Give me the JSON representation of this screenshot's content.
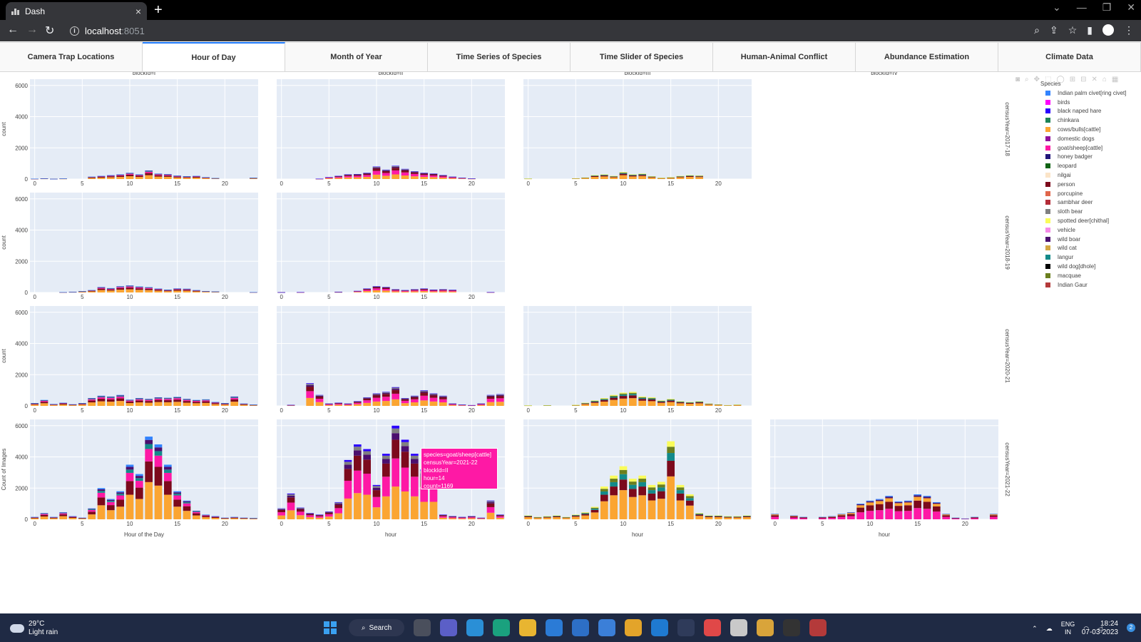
{
  "browser": {
    "tab_title": "Dash",
    "tab_close": "×",
    "new_tab": "+",
    "url_host": "localhost",
    "url_port": ":8051"
  },
  "page_tabs": [
    "Camera Trap Locations",
    "Hour of Day",
    "Month of Year",
    "Time Series of Species",
    "Time Slider of Species",
    "Human-Animal Conflict",
    "Abundance Estimation",
    "Climate Data"
  ],
  "active_tab": 1,
  "colors": {
    "accent": "#1975fa",
    "plot_bg": "#e5ecf6",
    "tooltip_bg": "#fe19a5",
    "taskbar_bg": "#1f2a44"
  },
  "legend": {
    "title": "Species",
    "items": [
      {
        "label": "Indian palm civet[ring civet]",
        "color": "#3283fe"
      },
      {
        "label": "birds",
        "color": "#fe00fa"
      },
      {
        "label": "black naped hare",
        "color": "#2a00ff"
      },
      {
        "label": "chinkara",
        "color": "#1c8356"
      },
      {
        "label": "cows/bulls[cattle]",
        "color": "#fba532"
      },
      {
        "label": "domestic dogs",
        "color": "#90109c"
      },
      {
        "label": "goat/sheep[cattle]",
        "color": "#fe19a5"
      },
      {
        "label": "honey badger",
        "color": "#22167a"
      },
      {
        "label": "leopard",
        "color": "#106314"
      },
      {
        "label": "nilgai",
        "color": "#fbe4c8"
      },
      {
        "label": "person",
        "color": "#7c0a1c"
      },
      {
        "label": "porcupine",
        "color": "#e0664b"
      },
      {
        "label": "sambhar deer",
        "color": "#b32c37"
      },
      {
        "label": "sloth bear",
        "color": "#808080"
      },
      {
        "label": "spotted deer[chithal]",
        "color": "#fafc5a"
      },
      {
        "label": "vehicle",
        "color": "#f58ae8"
      },
      {
        "label": "wild boar",
        "color": "#4b0f6e"
      },
      {
        "label": "wild cat",
        "color": "#d4a743"
      },
      {
        "label": "langur",
        "color": "#138a8a"
      },
      {
        "label": "wild dog[dhole]",
        "color": "#000000"
      },
      {
        "label": "macquae",
        "color": "#6b7f1e"
      },
      {
        "label": "Indian Gaur",
        "color": "#b43a3a"
      }
    ]
  },
  "tooltip": {
    "lines": [
      "species=goat/sheep[cattle]",
      "censusYear=2021-22",
      "blockId=II",
      "hour=14",
      "count=1169"
    ]
  },
  "chart_data": {
    "type": "bar",
    "stacked": true,
    "facet_columns": [
      "blockId=I",
      "blockId=II",
      "blockId=III",
      "blockId=IV"
    ],
    "facet_rows": [
      "censusYear=2017-18",
      "censusYear=2018-19",
      "censusYear=2020-21",
      "censusYear=2021-22"
    ],
    "ylabels": [
      "count",
      "count",
      "count",
      "Count of Images"
    ],
    "xlabels": [
      "Hour of the Day",
      "hour",
      "hour",
      "hour"
    ],
    "x_ticks": [
      "0",
      "5",
      "10",
      "15",
      "20"
    ],
    "y_ticks": [
      "0",
      "2000",
      "4000",
      "6000"
    ],
    "ylim": [
      0,
      6400
    ],
    "xlim": [
      -0.5,
      23.5
    ],
    "panels": [
      {
        "row": 0,
        "col": 0,
        "totals": [
          20,
          40,
          10,
          30,
          0,
          0,
          150,
          200,
          250,
          300,
          400,
          300,
          550,
          350,
          320,
          220,
          180,
          200,
          120,
          60,
          0,
          0,
          0,
          80
        ]
      },
      {
        "row": 0,
        "col": 1,
        "totals": [
          0,
          0,
          0,
          0,
          20,
          120,
          200,
          300,
          320,
          400,
          800,
          600,
          850,
          650,
          500,
          400,
          350,
          250,
          150,
          80,
          30,
          0,
          0,
          0
        ]
      },
      {
        "row": 0,
        "col": 2,
        "totals": [
          30,
          0,
          0,
          0,
          0,
          50,
          100,
          250,
          300,
          200,
          450,
          300,
          350,
          180,
          80,
          120,
          200,
          250,
          230,
          0,
          0,
          0,
          0,
          0
        ]
      },
      {
        "row": 1,
        "col": 0,
        "totals": [
          0,
          0,
          0,
          20,
          40,
          80,
          150,
          350,
          280,
          400,
          450,
          380,
          340,
          250,
          180,
          260,
          240,
          150,
          90,
          60,
          0,
          0,
          0,
          20
        ]
      },
      {
        "row": 1,
        "col": 1,
        "totals": [
          10,
          0,
          20,
          0,
          0,
          0,
          40,
          0,
          100,
          250,
          400,
          350,
          200,
          150,
          200,
          250,
          180,
          200,
          170,
          0,
          0,
          0,
          20,
          0
        ]
      },
      {
        "row": 2,
        "col": 0,
        "totals": [
          180,
          380,
          120,
          200,
          100,
          180,
          500,
          650,
          600,
          700,
          400,
          500,
          450,
          550,
          520,
          580,
          450,
          380,
          420,
          250,
          180,
          600,
          150,
          80
        ]
      },
      {
        "row": 2,
        "col": 1,
        "totals": [
          0,
          60,
          0,
          1450,
          700,
          150,
          200,
          150,
          300,
          550,
          800,
          900,
          1200,
          500,
          650,
          1000,
          800,
          650,
          150,
          80,
          50,
          150,
          700,
          750
        ]
      },
      {
        "row": 2,
        "col": 2,
        "totals": [
          30,
          0,
          40,
          0,
          0,
          60,
          200,
          350,
          500,
          700,
          850,
          900,
          600,
          550,
          350,
          450,
          300,
          250,
          300,
          150,
          100,
          50,
          80,
          0
        ]
      },
      {
        "row": 3,
        "col": 0,
        "totals": [
          150,
          400,
          150,
          450,
          200,
          100,
          700,
          2000,
          1300,
          1800,
          3500,
          2900,
          5300,
          4800,
          3500,
          1800,
          1200,
          550,
          300,
          200,
          100,
          150,
          100,
          80
        ]
      },
      {
        "row": 3,
        "col": 1,
        "totals": [
          700,
          1650,
          750,
          400,
          300,
          500,
          1100,
          3800,
          4800,
          4500,
          2200,
          4200,
          6000,
          5100,
          4200,
          3200,
          3200,
          300,
          200,
          150,
          200,
          100,
          1200,
          300
        ]
      },
      {
        "row": 3,
        "col": 2,
        "totals": [
          250,
          150,
          200,
          250,
          150,
          300,
          450,
          800,
          2100,
          2800,
          3400,
          2600,
          2800,
          2200,
          2400,
          5000,
          2200,
          1600,
          400,
          250,
          250,
          200,
          200,
          250
        ]
      },
      {
        "row": 3,
        "col": 3,
        "totals": [
          350,
          0,
          250,
          150,
          0,
          150,
          200,
          350,
          450,
          1000,
          1200,
          1300,
          1500,
          1150,
          1200,
          1600,
          1500,
          1100,
          350,
          100,
          50,
          150,
          0,
          350
        ]
      }
    ]
  },
  "taskbar": {
    "temp": "29°C",
    "weather": "Light rain",
    "search": "Search",
    "lang": "ENG",
    "region": "IN",
    "time": "18:24",
    "date": "07-03-2023",
    "notifications": "2"
  }
}
